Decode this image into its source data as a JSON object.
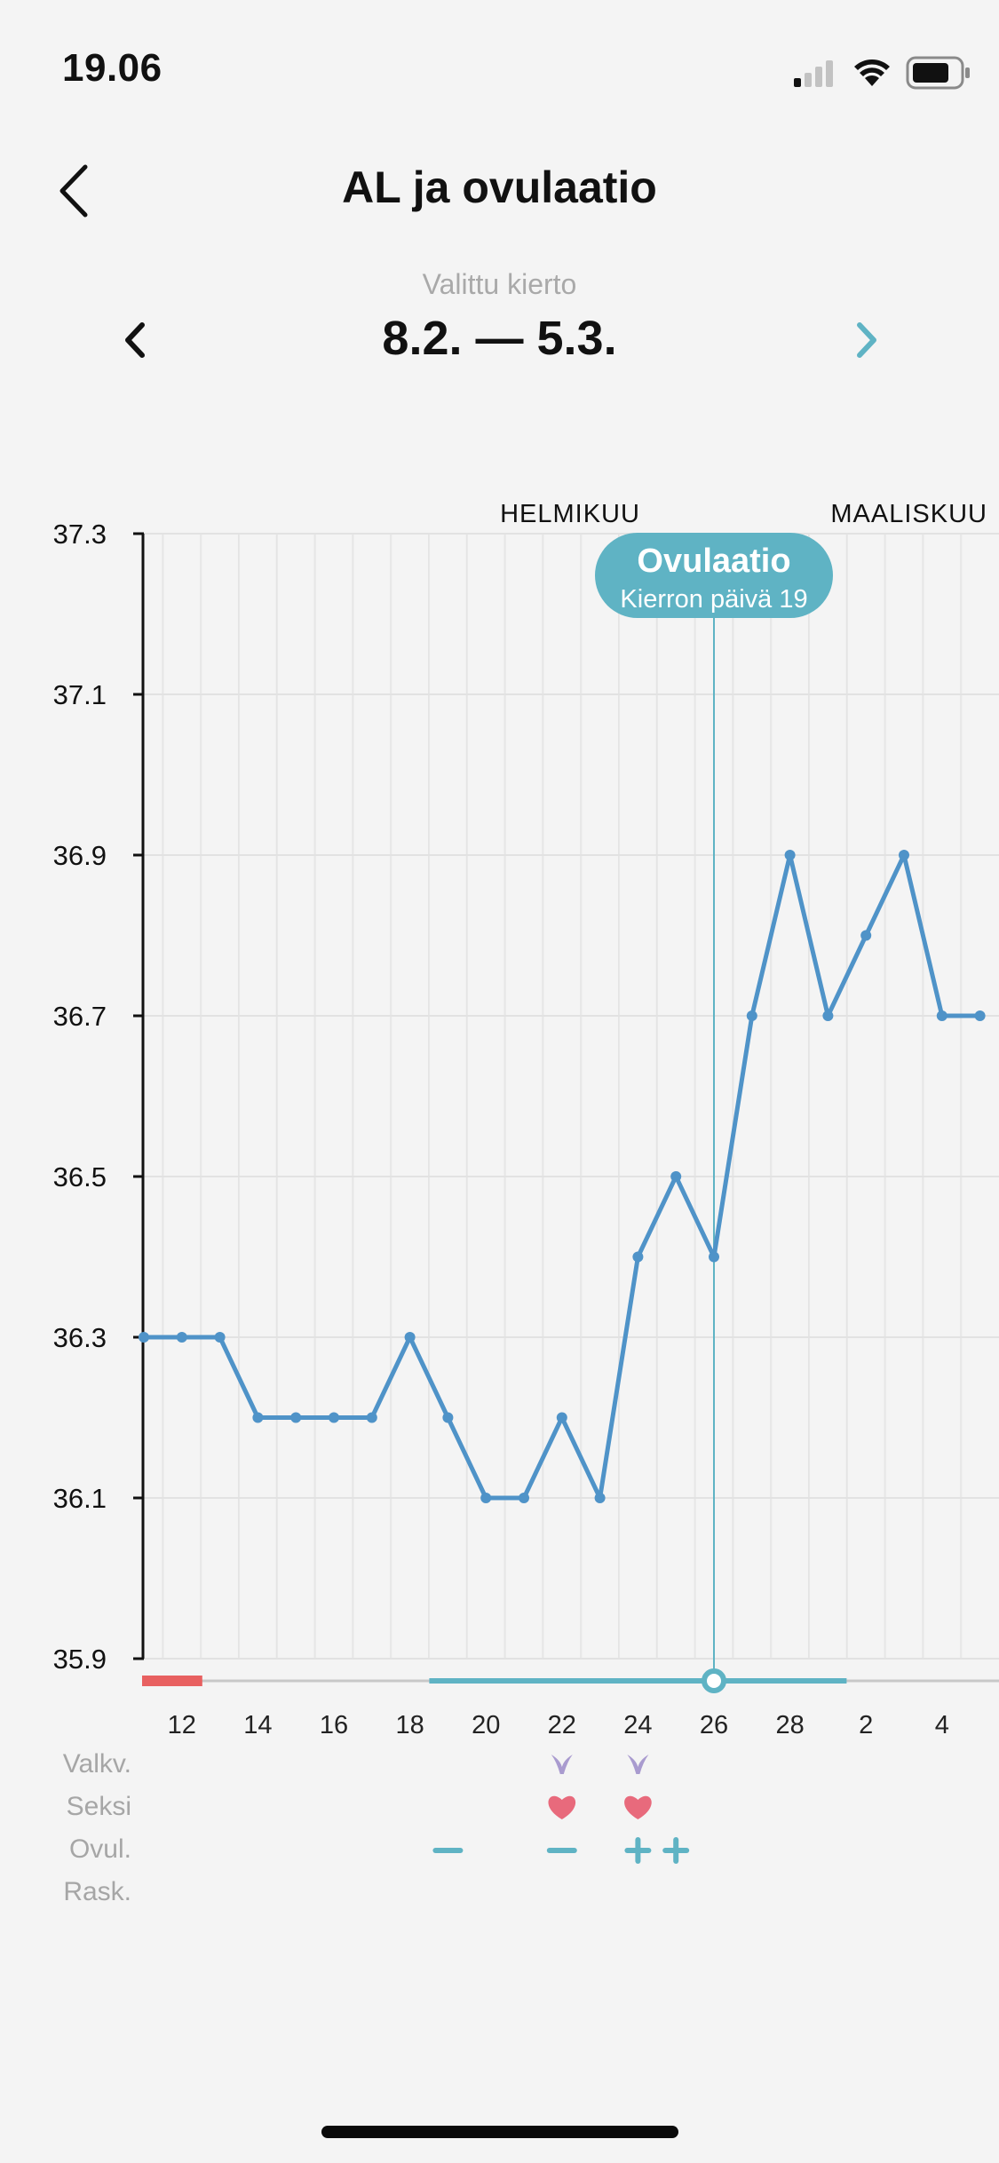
{
  "status_bar": {
    "time": "19.06",
    "signal_icon": "cellular-signal-icon",
    "wifi_icon": "wifi-icon",
    "battery_icon": "battery-icon"
  },
  "header": {
    "title": "AL ja ovulaatio",
    "back_icon": "chevron-left-icon"
  },
  "cycle_selector": {
    "label": "Valittu kierto",
    "range": "8.2. — 5.3.",
    "prev_icon": "chevron-left-icon",
    "next_icon": "chevron-right-icon"
  },
  "chart_data": {
    "type": "line",
    "title": "",
    "xlabel": "",
    "ylabel": "",
    "month_labels": [
      "HELMIKUU",
      "MAALISKUU"
    ],
    "y_ticks": [
      "37.3",
      "37.1",
      "36.9",
      "36.7",
      "36.5",
      "36.3",
      "36.1",
      "35.9"
    ],
    "ylim": [
      35.9,
      37.3
    ],
    "x_tick_labels": [
      "12",
      "14",
      "16",
      "18",
      "20",
      "22",
      "24",
      "26",
      "28",
      "2",
      "4"
    ],
    "grid": true,
    "series": [
      {
        "x": [
          "11.2.",
          "12.2.",
          "13.2.",
          "14.2.",
          "15.2.",
          "16.2.",
          "17.2.",
          "18.2.",
          "19.2.",
          "20.2.",
          "21.2.",
          "22.2.",
          "23.2.",
          "24.2.",
          "25.2.",
          "26.2.",
          "27.2.",
          "28.2.",
          "1.3.",
          "2.3.",
          "3.3.",
          "4.3.",
          "5.3."
        ],
        "values": [
          36.3,
          36.3,
          36.3,
          36.2,
          36.2,
          36.2,
          36.2,
          36.3,
          36.2,
          36.1,
          36.1,
          36.2,
          36.1,
          36.4,
          36.5,
          36.4,
          36.7,
          36.9,
          36.7,
          36.8,
          36.9,
          36.7,
          36.7
        ],
        "color": "#4f93c8"
      }
    ],
    "ovulation_marker": {
      "x": "26.2.",
      "title": "Ovulaatio",
      "subtitle": "Kierron päivä 19",
      "color": "#5fb3c4"
    },
    "timeline": {
      "period_days": [
        "11.2.",
        "12.2."
      ],
      "period_color": "#e86060",
      "fertile_window": [
        "19.2.",
        "1.3."
      ],
      "fertile_color": "#5fb3c4"
    },
    "event_rows": [
      {
        "label": "Valkv.",
        "icon": "cervical-mucus-icon",
        "days": [
          "22.2.",
          "24.2."
        ]
      },
      {
        "label": "Seksi",
        "icon": "heart-icon",
        "days": [
          "22.2.",
          "24.2."
        ]
      },
      {
        "label": "Ovul.",
        "icon": "ovulation-test-icon",
        "negative_days": [
          "19.2.",
          "22.2."
        ],
        "positive_days": [
          "24.2.",
          "25.2."
        ]
      },
      {
        "label": "Rask.",
        "icon": "pregnancy-test-icon",
        "days": []
      }
    ]
  }
}
